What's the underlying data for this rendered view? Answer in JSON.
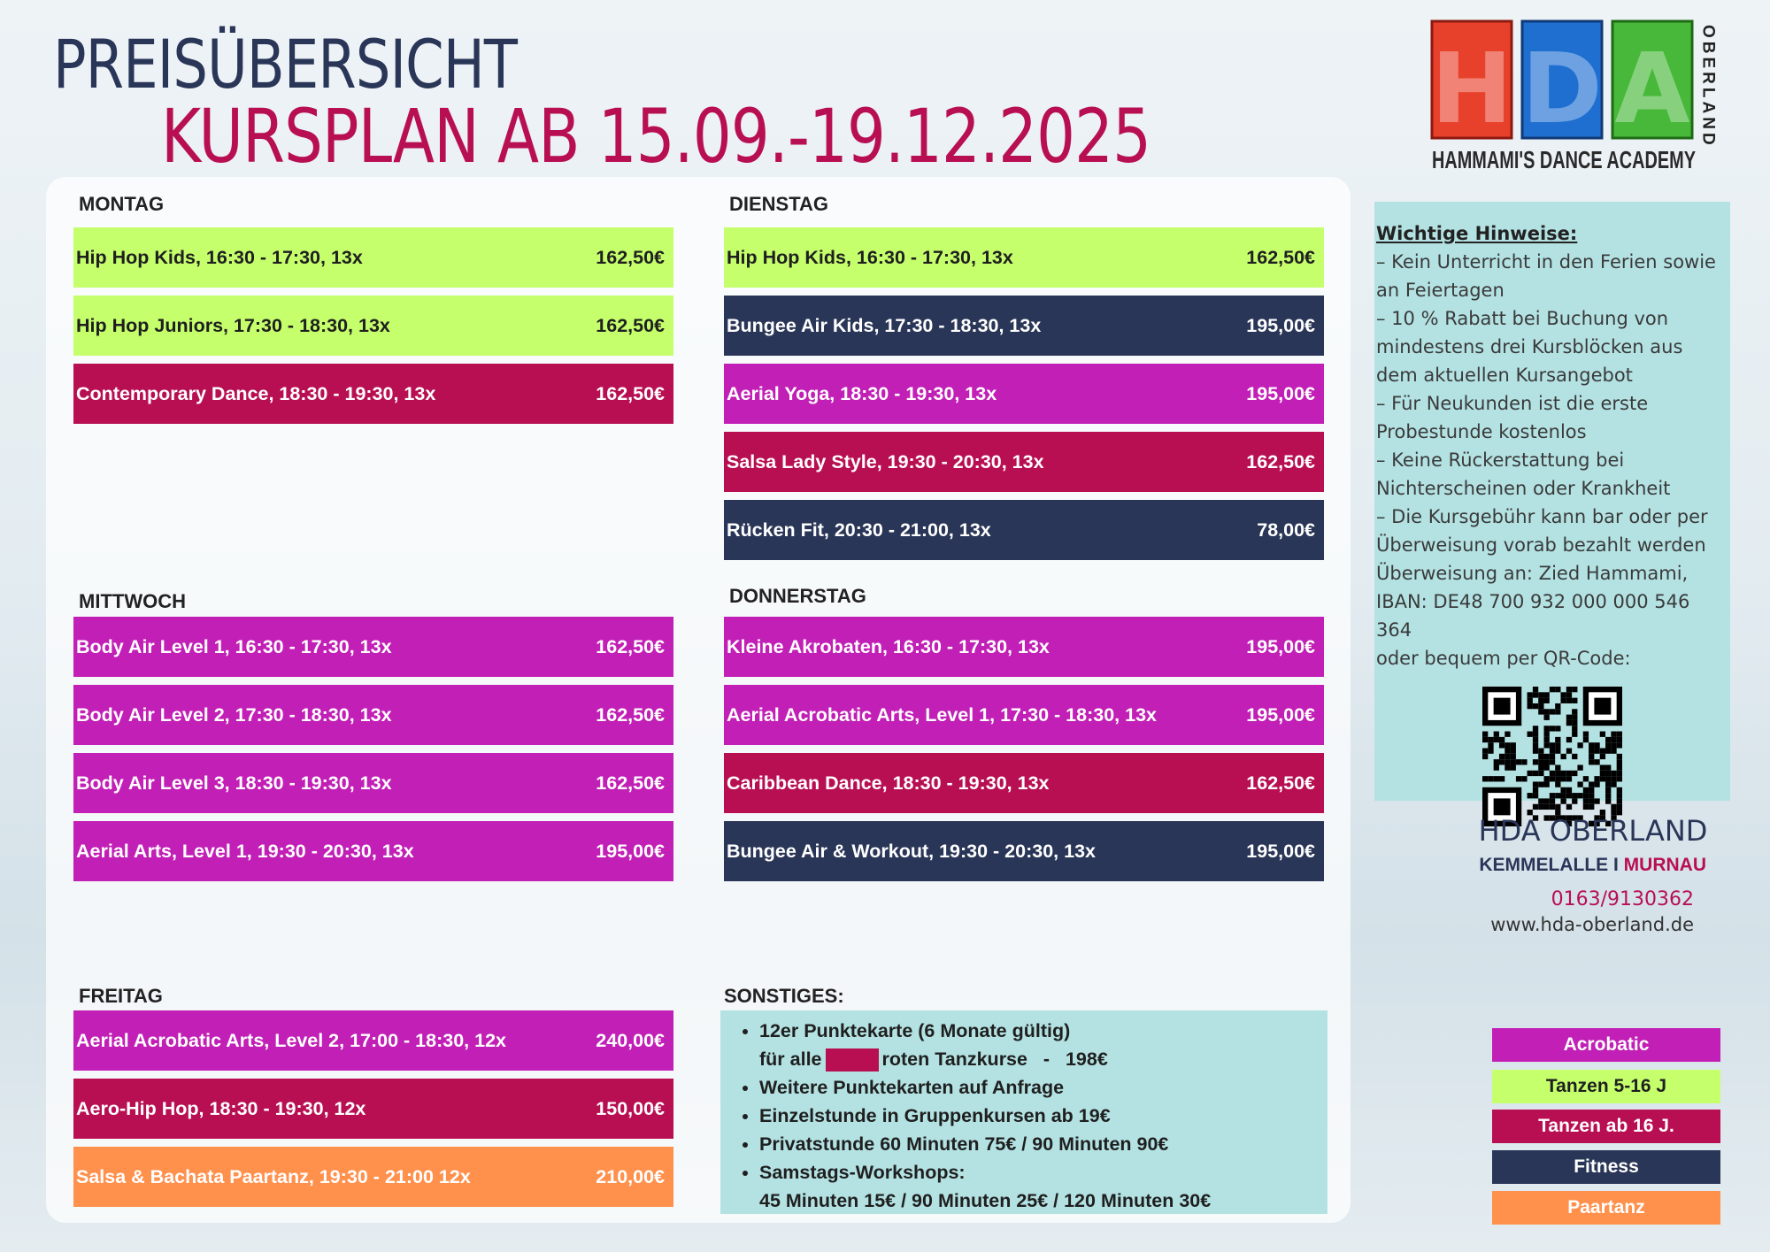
{
  "header": {
    "title": "PREISÜBERSICHT",
    "subtitle": "KURSPLAN AB 15.09.-19.12.2025"
  },
  "logo": {
    "letters": [
      "H",
      "D",
      "A"
    ],
    "side": "OBERLAND",
    "name": "HAMMAMI'S DANCE ACADEMY"
  },
  "days": [
    {
      "name": "MONTAG",
      "courses": [
        {
          "label": "Hip Hop Kids, 16:30 - 17:30, 13x",
          "price": "162,50€",
          "color": "#c5ff6c"
        },
        {
          "label": "Hip Hop Juniors, 17:30 - 18:30, 13x",
          "price": "162,50€",
          "color": "#c5ff6c"
        },
        {
          "label": "Contemporary Dance, 18:30 - 19:30, 13x",
          "price": "162,50€",
          "color": "#b80f53"
        }
      ]
    },
    {
      "name": "DIENSTAG",
      "courses": [
        {
          "label": "Hip Hop Kids, 16:30 - 17:30, 13x",
          "price": "162,50€",
          "color": "#c5ff6c"
        },
        {
          "label": "Bungee Air Kids, 17:30 - 18:30, 13x",
          "price": "195,00€",
          "color": "#2a3657"
        },
        {
          "label": "Aerial Yoga, 18:30 - 19:30, 13x",
          "price": "195,00€",
          "color": "#c21fb6"
        },
        {
          "label": "Salsa Lady Style, 19:30 - 20:30, 13x",
          "price": "162,50€",
          "color": "#b80f53"
        },
        {
          "label": "Rücken Fit, 20:30 - 21:00, 13x",
          "price": "78,00€",
          "color": "#2a3657"
        }
      ]
    },
    {
      "name": "MITTWOCH",
      "courses": [
        {
          "label": "Body Air Level 1, 16:30 - 17:30, 13x",
          "price": "162,50€",
          "color": "#c21fb6"
        },
        {
          "label": "Body Air Level 2, 17:30 - 18:30, 13x",
          "price": "162,50€",
          "color": "#c21fb6"
        },
        {
          "label": "Body Air Level 3, 18:30 - 19:30, 13x",
          "price": "162,50€",
          "color": "#c21fb6"
        },
        {
          "label": "Aerial Arts, Level 1, 19:30 - 20:30, 13x",
          "price": "195,00€",
          "color": "#c21fb6"
        }
      ]
    },
    {
      "name": "DONNERSTAG",
      "courses": [
        {
          "label": "Kleine Akrobaten, 16:30 - 17:30, 13x",
          "price": "195,00€",
          "color": "#c21fb6"
        },
        {
          "label": "Aerial Acrobatic Arts, Level 1, 17:30 - 18:30, 13x",
          "price": "195,00€",
          "color": "#c21fb6"
        },
        {
          "label": "Caribbean Dance, 18:30 - 19:30, 13x",
          "price": "162,50€",
          "color": "#b80f53"
        },
        {
          "label": "Bungee Air & Workout, 19:30 - 20:30, 13x",
          "price": "195,00€",
          "color": "#2a3657"
        }
      ]
    },
    {
      "name": "FREITAG",
      "courses": [
        {
          "label": "Aerial Acrobatic Arts, Level 2, 17:00 - 18:30, 12x",
          "price": "240,00€",
          "color": "#c21fb6"
        },
        {
          "label": "Aero-Hip Hop, 18:30 - 19:30, 12x",
          "price": "150,00€",
          "color": "#b80f53"
        },
        {
          "label": "Salsa & Bachata Paartanz, 19:30 - 21:00 12x",
          "price": "210,00€",
          "color": "#ff914d"
        }
      ]
    }
  ],
  "sonstiges": {
    "title": "SONSTIGES:",
    "items": [
      [
        "12er Punktekarte (6 Monate gültig)",
        "für alle",
        "roten Tanzkurse   -   198€"
      ],
      [
        "Weitere Punktekarten auf Anfrage"
      ],
      [
        "Einzelstunde in Gruppenkursen ab 19€"
      ],
      [
        "Privatstunde 60 Minuten 75€ / 90 Minuten 90€"
      ],
      [
        "Samstags-Workshops:",
        "45 Minuten 15€ / 90 Minuten 25€ / 120 Minuten 30€"
      ]
    ]
  },
  "notes": {
    "title": "Wichtige Hinweise:",
    "lines": [
      "– Kein Unterricht in den Ferien sowie an Feiertagen",
      "– 10 % Rabatt bei Buchung von mindestens drei Kursblöcken aus dem aktuellen Kursangebot",
      "– Für Neukunden ist die erste Probestunde kostenlos",
      "– Keine Rückerstattung bei Nichterscheinen oder Krankheit",
      "– Die Kursgebühr kann bar oder per Überweisung vorab bezahlt werden",
      "Überweisung an: Zied Hammami,",
      "IBAN: DE48 700 932 000 000 546 364",
      "oder bequem per QR-Code:"
    ]
  },
  "contact": {
    "name": "HDA OBERLAND",
    "street": "KEMMELALLE I",
    "town": "MURNAU",
    "phone": "0163/9130362",
    "web": "www.hda-oberland.de"
  },
  "legend": [
    {
      "label": "Acrobatic",
      "color": "#c21fb6"
    },
    {
      "label": "Tanzen 5-16 J",
      "color": "#c5ff6c"
    },
    {
      "label": "Tanzen ab 16 J.",
      "color": "#b80f53"
    },
    {
      "label": "Fitness",
      "color": "#2a3657"
    },
    {
      "label": "Paartanz",
      "color": "#ff914d"
    }
  ]
}
